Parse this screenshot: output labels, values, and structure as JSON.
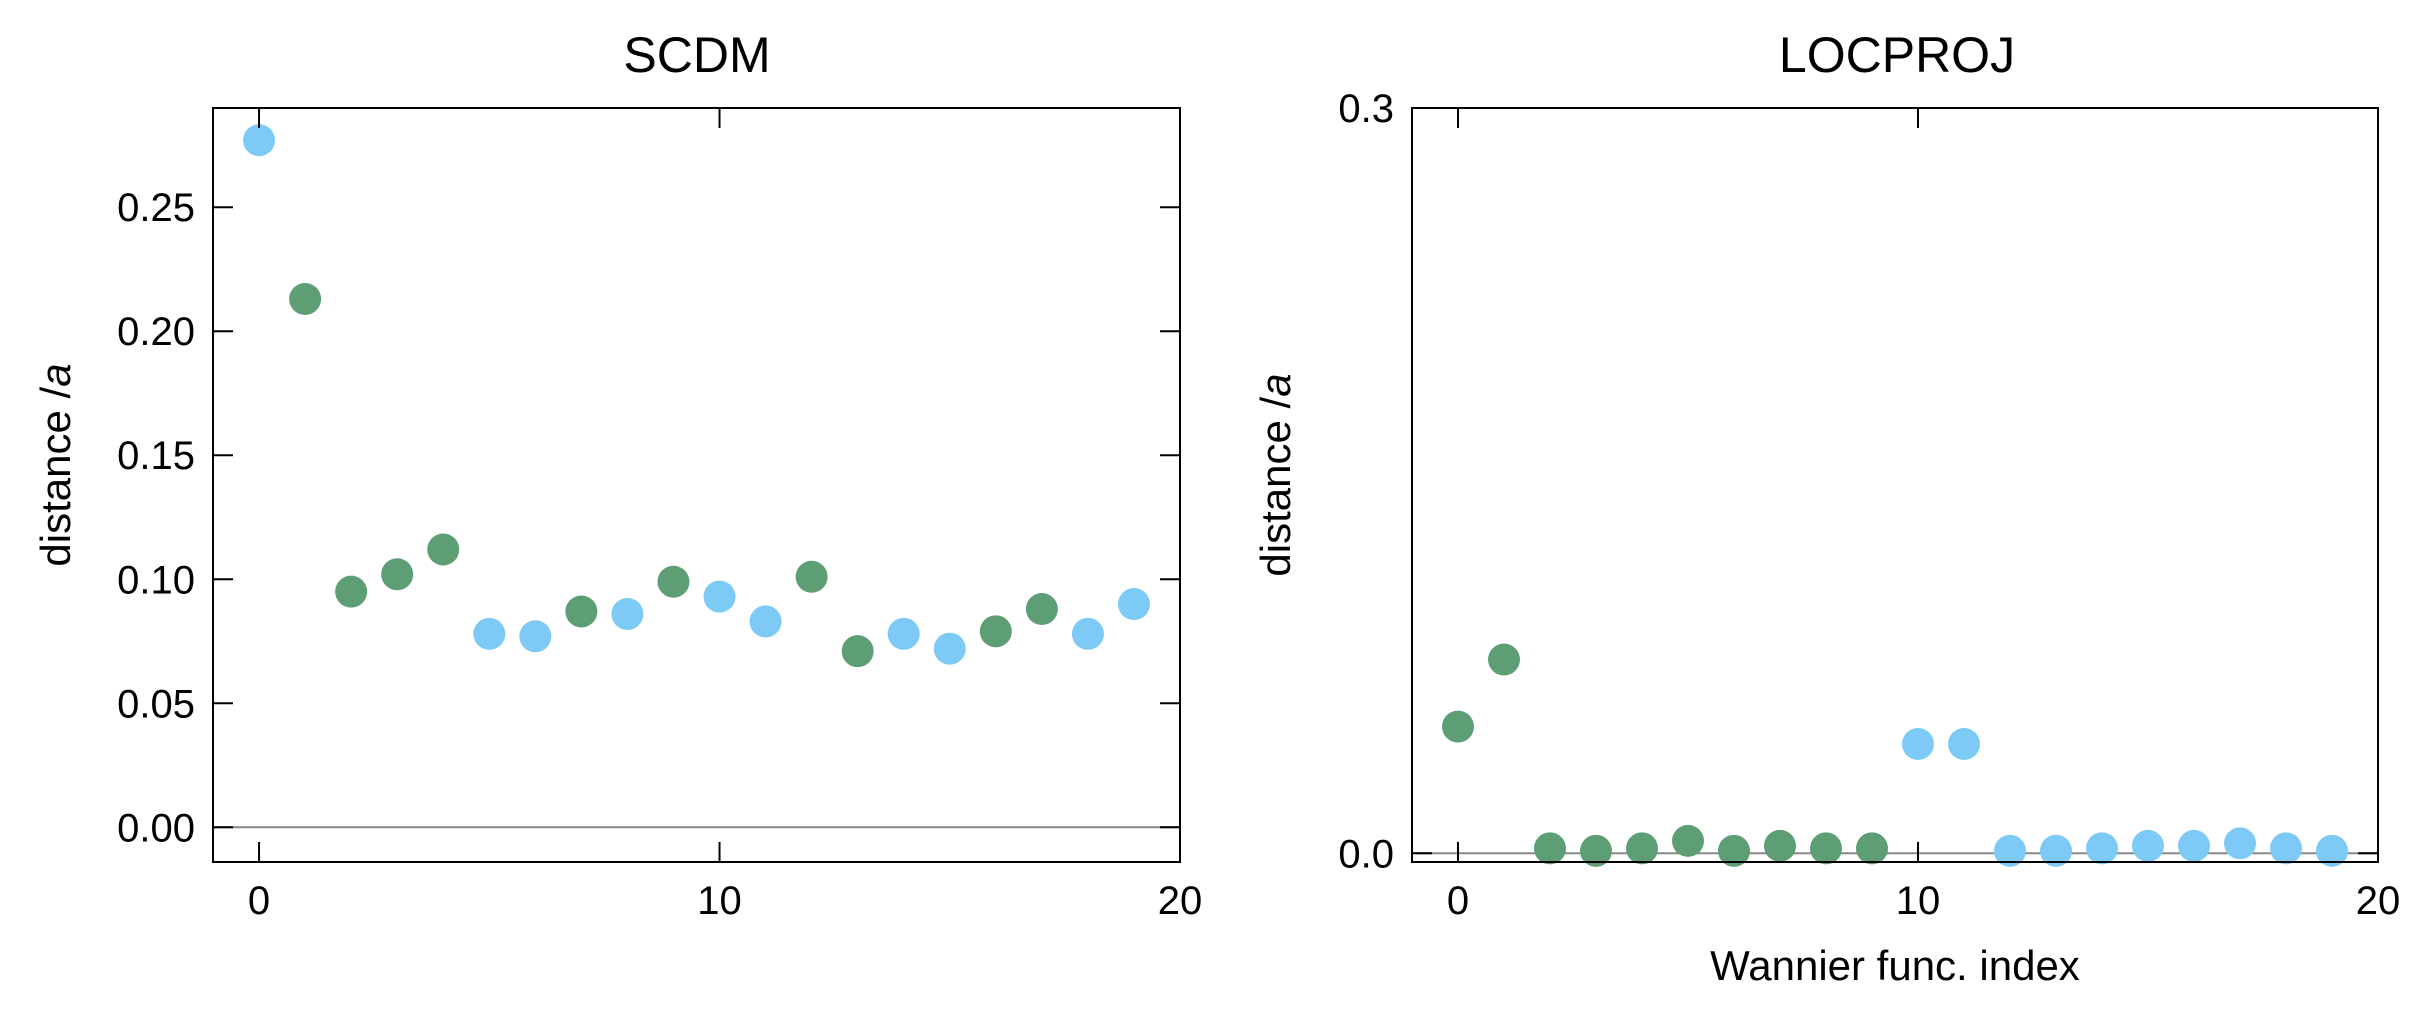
{
  "colors": {
    "green": "#5d9e74",
    "blue": "#7ccaf5",
    "zero_line": "#888888",
    "frame": "#000000"
  },
  "chart_data": [
    {
      "type": "scatter",
      "title": "SCDM",
      "xlabel": "",
      "ylabel": "distance /a",
      "ylabel_plain": "distance /",
      "ylabel_italic": "a",
      "xlim": [
        -1,
        20
      ],
      "ylim": [
        -0.014,
        0.29
      ],
      "xticks": [
        0,
        10,
        20
      ],
      "xtick_labels": [
        "0",
        "10",
        "20"
      ],
      "yticks": [
        0.0,
        0.05,
        0.1,
        0.15,
        0.2,
        0.25
      ],
      "ytick_labels": [
        "0.00",
        "0.05",
        "0.10",
        "0.15",
        "0.20",
        "0.25"
      ],
      "zero_line": 0,
      "grid": false,
      "points": [
        {
          "x": 0,
          "y": 0.277,
          "color": "blue"
        },
        {
          "x": 1,
          "y": 0.213,
          "color": "green"
        },
        {
          "x": 2,
          "y": 0.095,
          "color": "green"
        },
        {
          "x": 3,
          "y": 0.102,
          "color": "green"
        },
        {
          "x": 4,
          "y": 0.112,
          "color": "green"
        },
        {
          "x": 5,
          "y": 0.078,
          "color": "blue"
        },
        {
          "x": 6,
          "y": 0.077,
          "color": "blue"
        },
        {
          "x": 7,
          "y": 0.087,
          "color": "green"
        },
        {
          "x": 8,
          "y": 0.086,
          "color": "blue"
        },
        {
          "x": 9,
          "y": 0.099,
          "color": "green"
        },
        {
          "x": 10,
          "y": 0.093,
          "color": "blue"
        },
        {
          "x": 11,
          "y": 0.083,
          "color": "blue"
        },
        {
          "x": 12,
          "y": 0.101,
          "color": "green"
        },
        {
          "x": 13,
          "y": 0.071,
          "color": "green"
        },
        {
          "x": 14,
          "y": 0.078,
          "color": "blue"
        },
        {
          "x": 15,
          "y": 0.072,
          "color": "blue"
        },
        {
          "x": 16,
          "y": 0.079,
          "color": "green"
        },
        {
          "x": 17,
          "y": 0.088,
          "color": "green"
        },
        {
          "x": 18,
          "y": 0.078,
          "color": "blue"
        },
        {
          "x": 19,
          "y": 0.09,
          "color": "blue"
        }
      ]
    },
    {
      "type": "scatter",
      "title": "LOCPROJ",
      "xlabel": "Wannier func. index",
      "ylabel": "distance /a",
      "ylabel_plain": "distance /",
      "ylabel_italic": "a",
      "xlim": [
        -1,
        20
      ],
      "ylim": [
        -0.0035,
        0.3
      ],
      "xticks": [
        0,
        10,
        20
      ],
      "xtick_labels": [
        "0",
        "10",
        "20"
      ],
      "yticks": [
        0.0,
        0.3
      ],
      "ytick_labels": [
        "0.0",
        "0.3"
      ],
      "zero_line": 0,
      "grid": false,
      "points": [
        {
          "x": 0,
          "y": 0.051,
          "color": "green"
        },
        {
          "x": 1,
          "y": 0.078,
          "color": "green"
        },
        {
          "x": 2,
          "y": 0.002,
          "color": "green"
        },
        {
          "x": 3,
          "y": 0.001,
          "color": "green"
        },
        {
          "x": 4,
          "y": 0.002,
          "color": "green"
        },
        {
          "x": 5,
          "y": 0.005,
          "color": "green"
        },
        {
          "x": 6,
          "y": 0.001,
          "color": "green"
        },
        {
          "x": 7,
          "y": 0.003,
          "color": "green"
        },
        {
          "x": 8,
          "y": 0.002,
          "color": "green"
        },
        {
          "x": 9,
          "y": 0.002,
          "color": "green"
        },
        {
          "x": 10,
          "y": 0.044,
          "color": "blue"
        },
        {
          "x": 11,
          "y": 0.044,
          "color": "blue"
        },
        {
          "x": 12,
          "y": 0.001,
          "color": "blue"
        },
        {
          "x": 13,
          "y": 0.001,
          "color": "blue"
        },
        {
          "x": 14,
          "y": 0.002,
          "color": "blue"
        },
        {
          "x": 15,
          "y": 0.003,
          "color": "blue"
        },
        {
          "x": 16,
          "y": 0.003,
          "color": "blue"
        },
        {
          "x": 17,
          "y": 0.004,
          "color": "blue"
        },
        {
          "x": 18,
          "y": 0.002,
          "color": "blue"
        },
        {
          "x": 19,
          "y": 0.001,
          "color": "blue"
        }
      ]
    }
  ]
}
